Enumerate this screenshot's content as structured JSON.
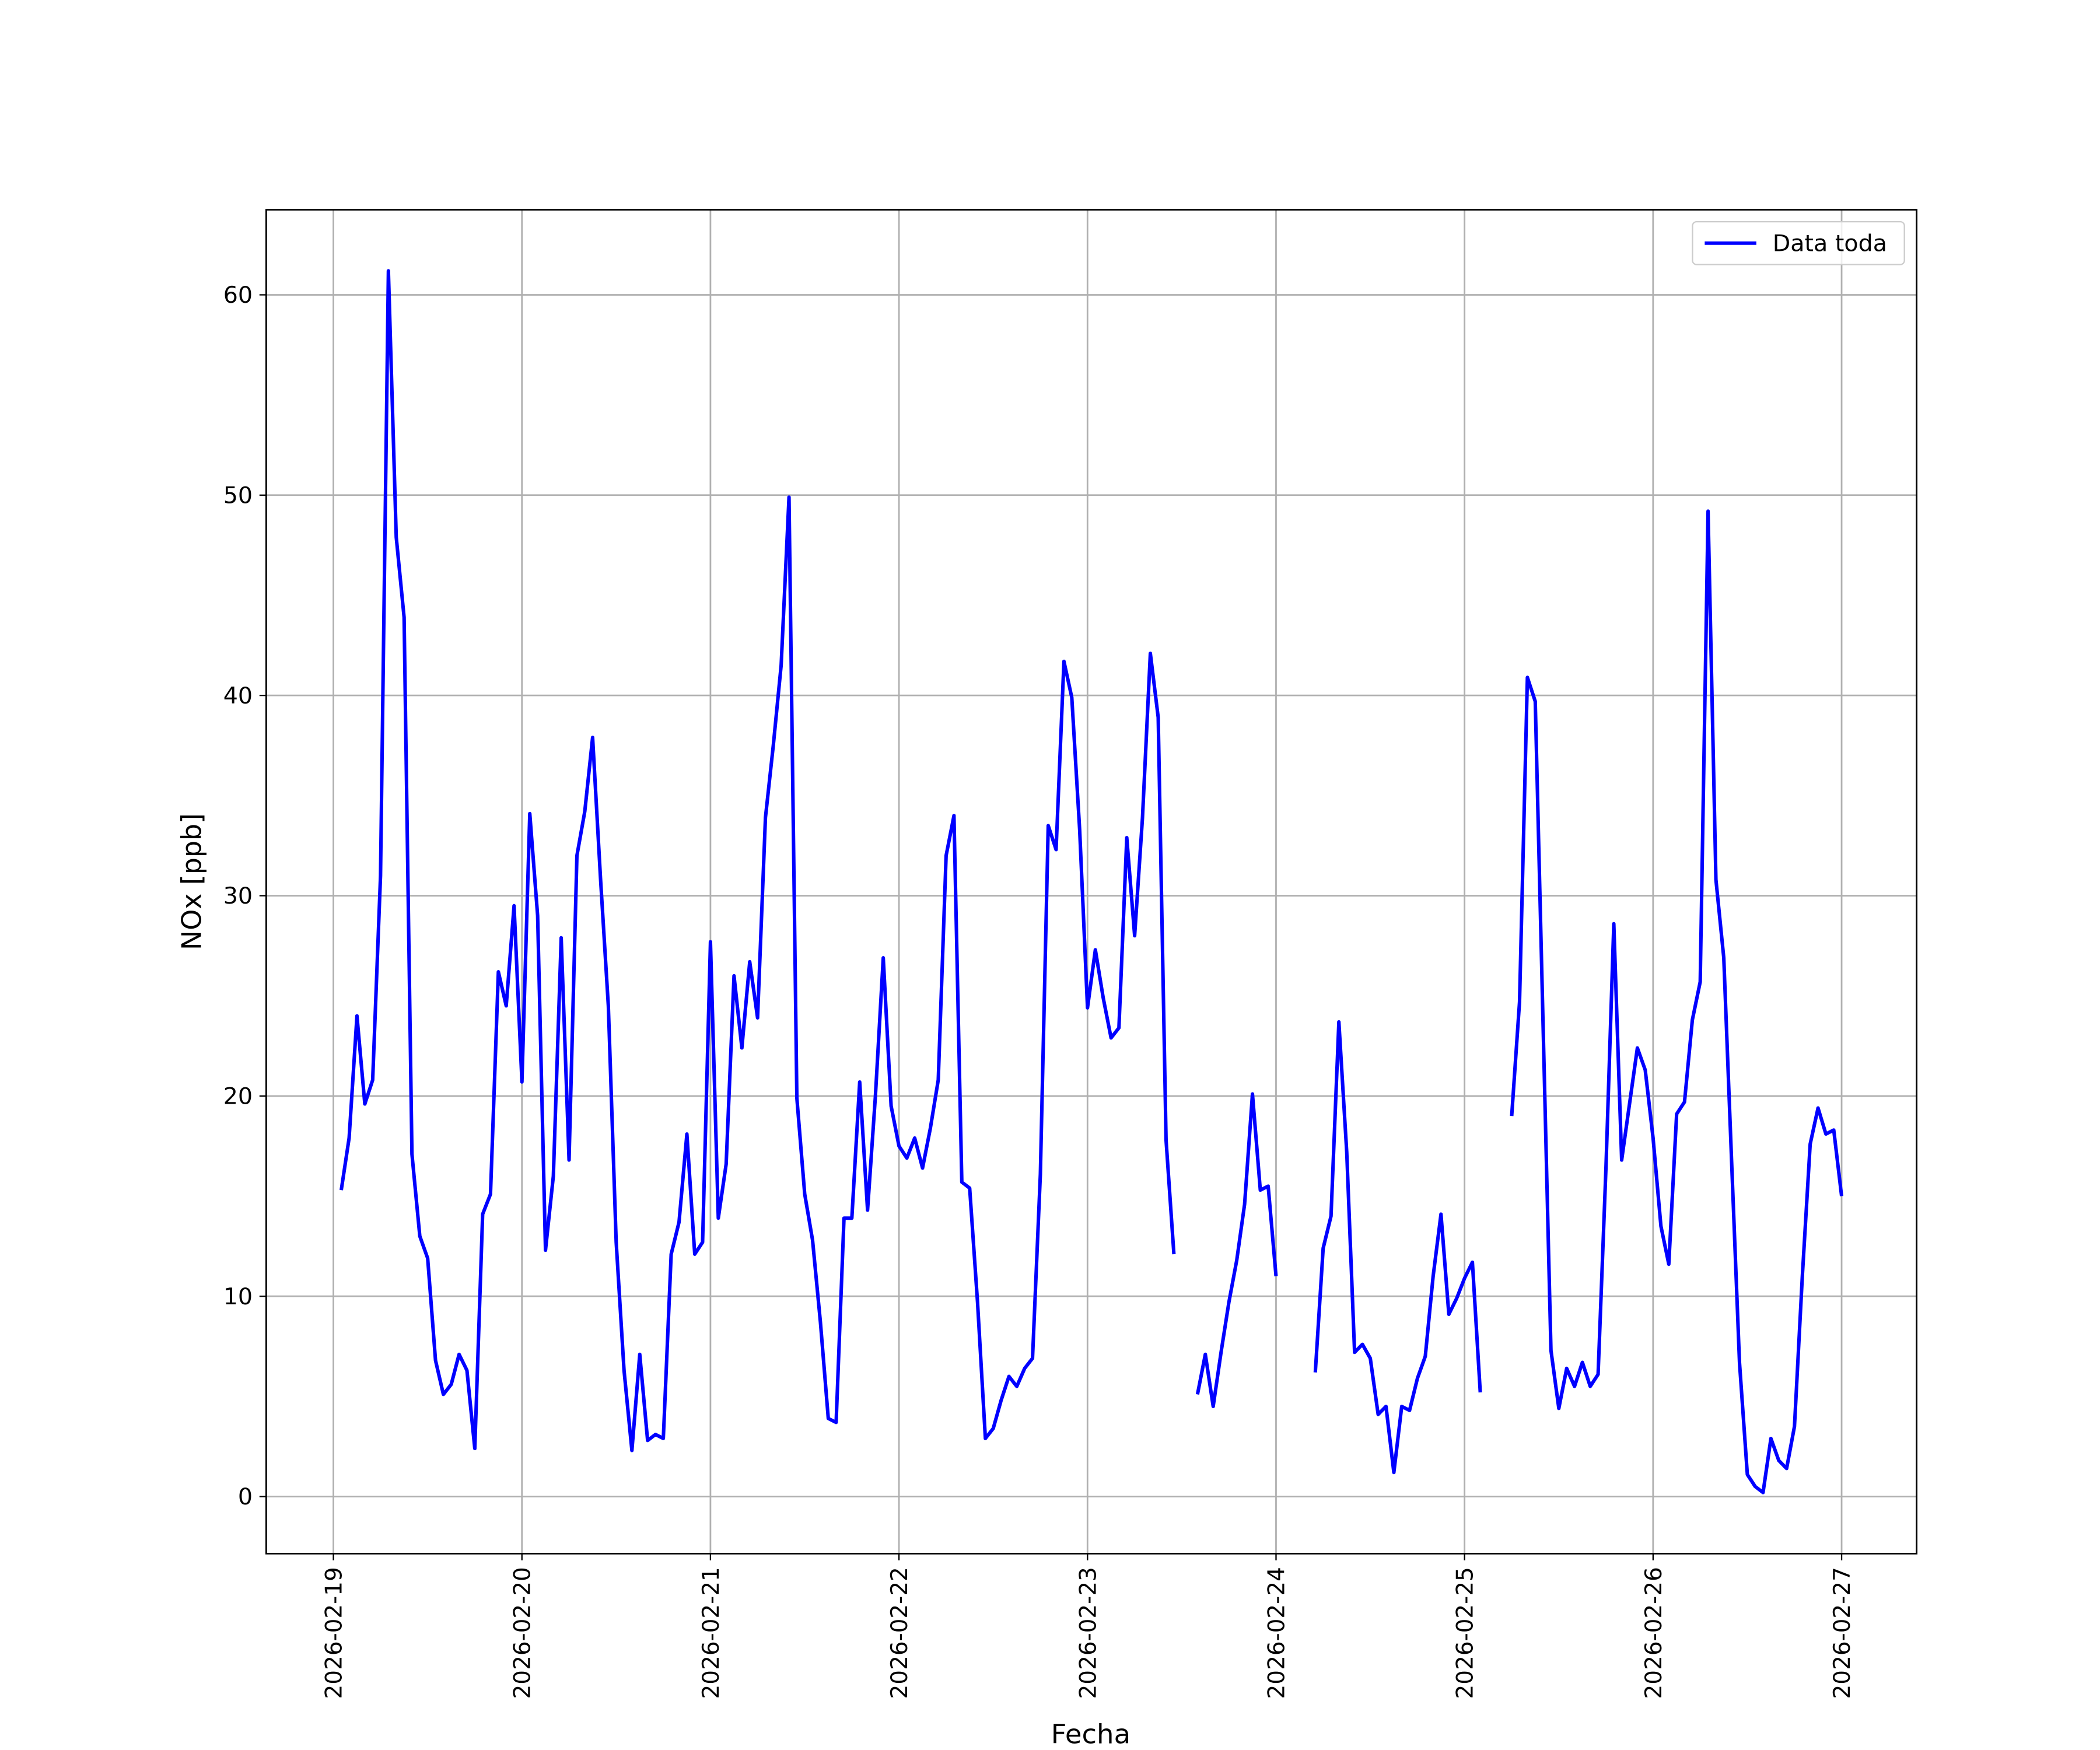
{
  "chart_data": {
    "type": "line",
    "xlabel": "Fecha",
    "ylabel": "NOx [ppb]",
    "x": [
      "2026-02-19 01:00",
      "2026-02-19 02:00",
      "2026-02-19 03:00",
      "2026-02-19 04:00",
      "2026-02-19 05:00",
      "2026-02-19 06:00",
      "2026-02-19 07:00",
      "2026-02-19 08:00",
      "2026-02-19 09:00",
      "2026-02-19 10:00",
      "2026-02-19 11:00",
      "2026-02-19 12:00",
      "2026-02-19 13:00",
      "2026-02-19 14:00",
      "2026-02-19 15:00",
      "2026-02-19 16:00",
      "2026-02-19 17:00",
      "2026-02-19 18:00",
      "2026-02-19 19:00",
      "2026-02-19 20:00",
      "2026-02-19 21:00",
      "2026-02-19 22:00",
      "2026-02-19 23:00",
      "2026-02-20 00:00",
      "2026-02-20 01:00",
      "2026-02-20 02:00",
      "2026-02-20 03:00",
      "2026-02-20 04:00",
      "2026-02-20 05:00",
      "2026-02-20 06:00",
      "2026-02-20 07:00",
      "2026-02-20 08:00",
      "2026-02-20 09:00",
      "2026-02-20 10:00",
      "2026-02-20 11:00",
      "2026-02-20 12:00",
      "2026-02-20 13:00",
      "2026-02-20 14:00",
      "2026-02-20 15:00",
      "2026-02-20 16:00",
      "2026-02-20 17:00",
      "2026-02-20 18:00",
      "2026-02-20 19:00",
      "2026-02-20 20:00",
      "2026-02-20 21:00",
      "2026-02-20 22:00",
      "2026-02-20 23:00",
      "2026-02-21 00:00",
      "2026-02-21 01:00",
      "2026-02-21 02:00",
      "2026-02-21 03:00",
      "2026-02-21 04:00",
      "2026-02-21 05:00",
      "2026-02-21 06:00",
      "2026-02-21 07:00",
      "2026-02-21 08:00",
      "2026-02-21 09:00",
      "2026-02-21 10:00",
      "2026-02-21 11:00",
      "2026-02-21 12:00",
      "2026-02-21 13:00",
      "2026-02-21 14:00",
      "2026-02-21 15:00",
      "2026-02-21 16:00",
      "2026-02-21 17:00",
      "2026-02-21 18:00",
      "2026-02-21 19:00",
      "2026-02-21 20:00",
      "2026-02-21 21:00",
      "2026-02-21 22:00",
      "2026-02-21 23:00",
      "2026-02-22 00:00",
      "2026-02-22 01:00",
      "2026-02-22 02:00",
      "2026-02-22 03:00",
      "2026-02-22 04:00",
      "2026-02-22 05:00",
      "2026-02-22 06:00",
      "2026-02-22 07:00",
      "2026-02-22 08:00",
      "2026-02-22 09:00",
      "2026-02-22 10:00",
      "2026-02-22 11:00",
      "2026-02-22 12:00",
      "2026-02-22 13:00",
      "2026-02-22 14:00",
      "2026-02-22 15:00",
      "2026-02-22 16:00",
      "2026-02-22 17:00",
      "2026-02-22 18:00",
      "2026-02-22 19:00",
      "2026-02-22 20:00",
      "2026-02-22 21:00",
      "2026-02-22 22:00",
      "2026-02-22 23:00",
      "2026-02-23 00:00",
      "2026-02-23 01:00",
      "2026-02-23 02:00",
      "2026-02-23 03:00",
      "2026-02-23 04:00",
      "2026-02-23 05:00",
      "2026-02-23 06:00",
      "2026-02-23 07:00",
      "2026-02-23 08:00",
      "2026-02-23 09:00",
      "2026-02-23 10:00",
      "2026-02-23 11:00",
      "2026-02-23 12:00",
      "2026-02-23 13:00",
      "2026-02-23 14:00",
      "2026-02-23 15:00",
      "2026-02-23 16:00",
      "2026-02-23 17:00",
      "2026-02-23 18:00",
      "2026-02-23 19:00",
      "2026-02-23 20:00",
      "2026-02-23 21:00",
      "2026-02-23 22:00",
      "2026-02-23 23:00",
      "2026-02-24 00:00",
      "2026-02-24 01:00",
      "2026-02-24 02:00",
      "2026-02-24 03:00",
      "2026-02-24 04:00",
      "2026-02-24 05:00",
      "2026-02-24 06:00",
      "2026-02-24 07:00",
      "2026-02-24 08:00",
      "2026-02-24 09:00",
      "2026-02-24 10:00",
      "2026-02-24 11:00",
      "2026-02-24 12:00",
      "2026-02-24 13:00",
      "2026-02-24 14:00",
      "2026-02-24 15:00",
      "2026-02-24 16:00",
      "2026-02-24 17:00",
      "2026-02-24 18:00",
      "2026-02-24 19:00",
      "2026-02-24 20:00",
      "2026-02-24 21:00",
      "2026-02-24 22:00",
      "2026-02-24 23:00",
      "2026-02-25 00:00",
      "2026-02-25 01:00",
      "2026-02-25 02:00",
      "2026-02-25 03:00",
      "2026-02-25 04:00",
      "2026-02-25 05:00",
      "2026-02-25 06:00",
      "2026-02-25 07:00",
      "2026-02-25 08:00",
      "2026-02-25 09:00",
      "2026-02-25 10:00",
      "2026-02-25 11:00",
      "2026-02-25 12:00",
      "2026-02-25 13:00",
      "2026-02-25 14:00",
      "2026-02-25 15:00",
      "2026-02-25 16:00",
      "2026-02-25 17:00",
      "2026-02-25 18:00",
      "2026-02-25 19:00",
      "2026-02-25 20:00",
      "2026-02-25 21:00",
      "2026-02-25 22:00",
      "2026-02-25 23:00",
      "2026-02-26 00:00",
      "2026-02-26 01:00",
      "2026-02-26 02:00",
      "2026-02-26 03:00",
      "2026-02-26 04:00",
      "2026-02-26 05:00",
      "2026-02-26 06:00",
      "2026-02-26 07:00",
      "2026-02-26 08:00",
      "2026-02-26 09:00",
      "2026-02-26 10:00",
      "2026-02-26 11:00",
      "2026-02-26 12:00",
      "2026-02-26 13:00",
      "2026-02-26 14:00",
      "2026-02-26 15:00",
      "2026-02-26 16:00",
      "2026-02-26 17:00",
      "2026-02-26 18:00",
      "2026-02-26 19:00",
      "2026-02-26 20:00",
      "2026-02-26 21:00",
      "2026-02-26 22:00",
      "2026-02-26 23:00",
      "2026-02-27 00:00"
    ],
    "series": [
      {
        "name": "Data toda",
        "color": "#0000ff",
        "values": [
          15.3,
          17.9,
          24,
          19.6,
          20.8,
          31,
          61.2,
          47.9,
          43.9,
          17.1,
          13,
          11.9,
          6.8,
          5.1,
          5.6,
          7.1,
          6.3,
          2.4,
          14.1,
          15.1,
          26.2,
          24.5,
          29.5,
          20.7,
          34.1,
          29,
          12.3,
          16,
          27.9,
          16.8,
          32,
          34.2,
          37.9,
          30.9,
          24.5,
          12.7,
          6.3,
          2.3,
          7.1,
          2.8,
          3.1,
          2.9,
          12.1,
          13.7,
          18.1,
          12.1,
          12.7,
          27.7,
          13.9,
          16.6,
          26,
          22.4,
          26.7,
          23.9,
          33.9,
          37.5,
          41.5,
          49.9,
          19.9,
          15.1,
          12.8,
          8.7,
          3.9,
          3.7,
          13.9,
          13.9,
          20.7,
          14.3,
          20,
          26.9,
          19.5,
          17.5,
          16.9,
          17.9,
          16.4,
          18.4,
          20.8,
          32,
          34,
          15.7,
          15.4,
          9.7,
          2.9,
          3.4,
          4.8,
          6,
          5.5,
          6.4,
          6.9,
          16.1,
          33.5,
          32.3,
          41.7,
          39.9,
          33.3,
          24.4,
          27.3,
          24.9,
          22.9,
          23.4,
          32.9,
          28,
          33.9,
          42.1,
          38.9,
          17.8,
          12.1,
          null,
          null,
          5.1,
          7.1,
          4.5,
          7.2,
          9.7,
          11.8,
          14.6,
          20.1,
          15.3,
          15.5,
          11,
          null,
          null,
          null,
          null,
          6.2,
          12.4,
          14,
          23.7,
          17.2,
          7.2,
          7.6,
          6.9,
          4.1,
          4.5,
          1.2,
          4.5,
          4.3,
          5.9,
          7,
          11,
          14.1,
          9.1,
          9.9,
          10.9,
          11.7,
          5.2,
          null,
          null,
          null,
          19,
          24.7,
          40.9,
          39.7,
          23.5,
          7.3,
          4.4,
          6.4,
          5.5,
          6.7,
          5.5,
          6.1,
          16.4,
          28.6,
          16.8,
          19.6,
          22.4,
          21.3,
          17.9,
          13.5,
          11.6,
          19.1,
          19.7,
          23.8,
          25.7,
          49.2,
          30.8,
          26.9,
          16.7,
          6.7,
          1.1,
          0.5,
          0.2,
          2.9,
          1.8,
          1.4,
          3.5,
          11,
          17.6,
          19.4,
          18.1,
          18.3,
          15
        ]
      }
    ],
    "xlim": [
      "2026-02-18 15:27",
      "2026-02-27 09:33"
    ],
    "xticks": [
      "2026-02-19",
      "2026-02-20",
      "2026-02-21",
      "2026-02-22",
      "2026-02-23",
      "2026-02-24",
      "2026-02-25",
      "2026-02-26",
      "2026-02-27"
    ],
    "ylim": [
      -2.85,
      64.25
    ],
    "yticks": [
      0,
      10,
      20,
      30,
      40,
      50,
      60
    ],
    "grid": true,
    "legend": "upper right"
  }
}
